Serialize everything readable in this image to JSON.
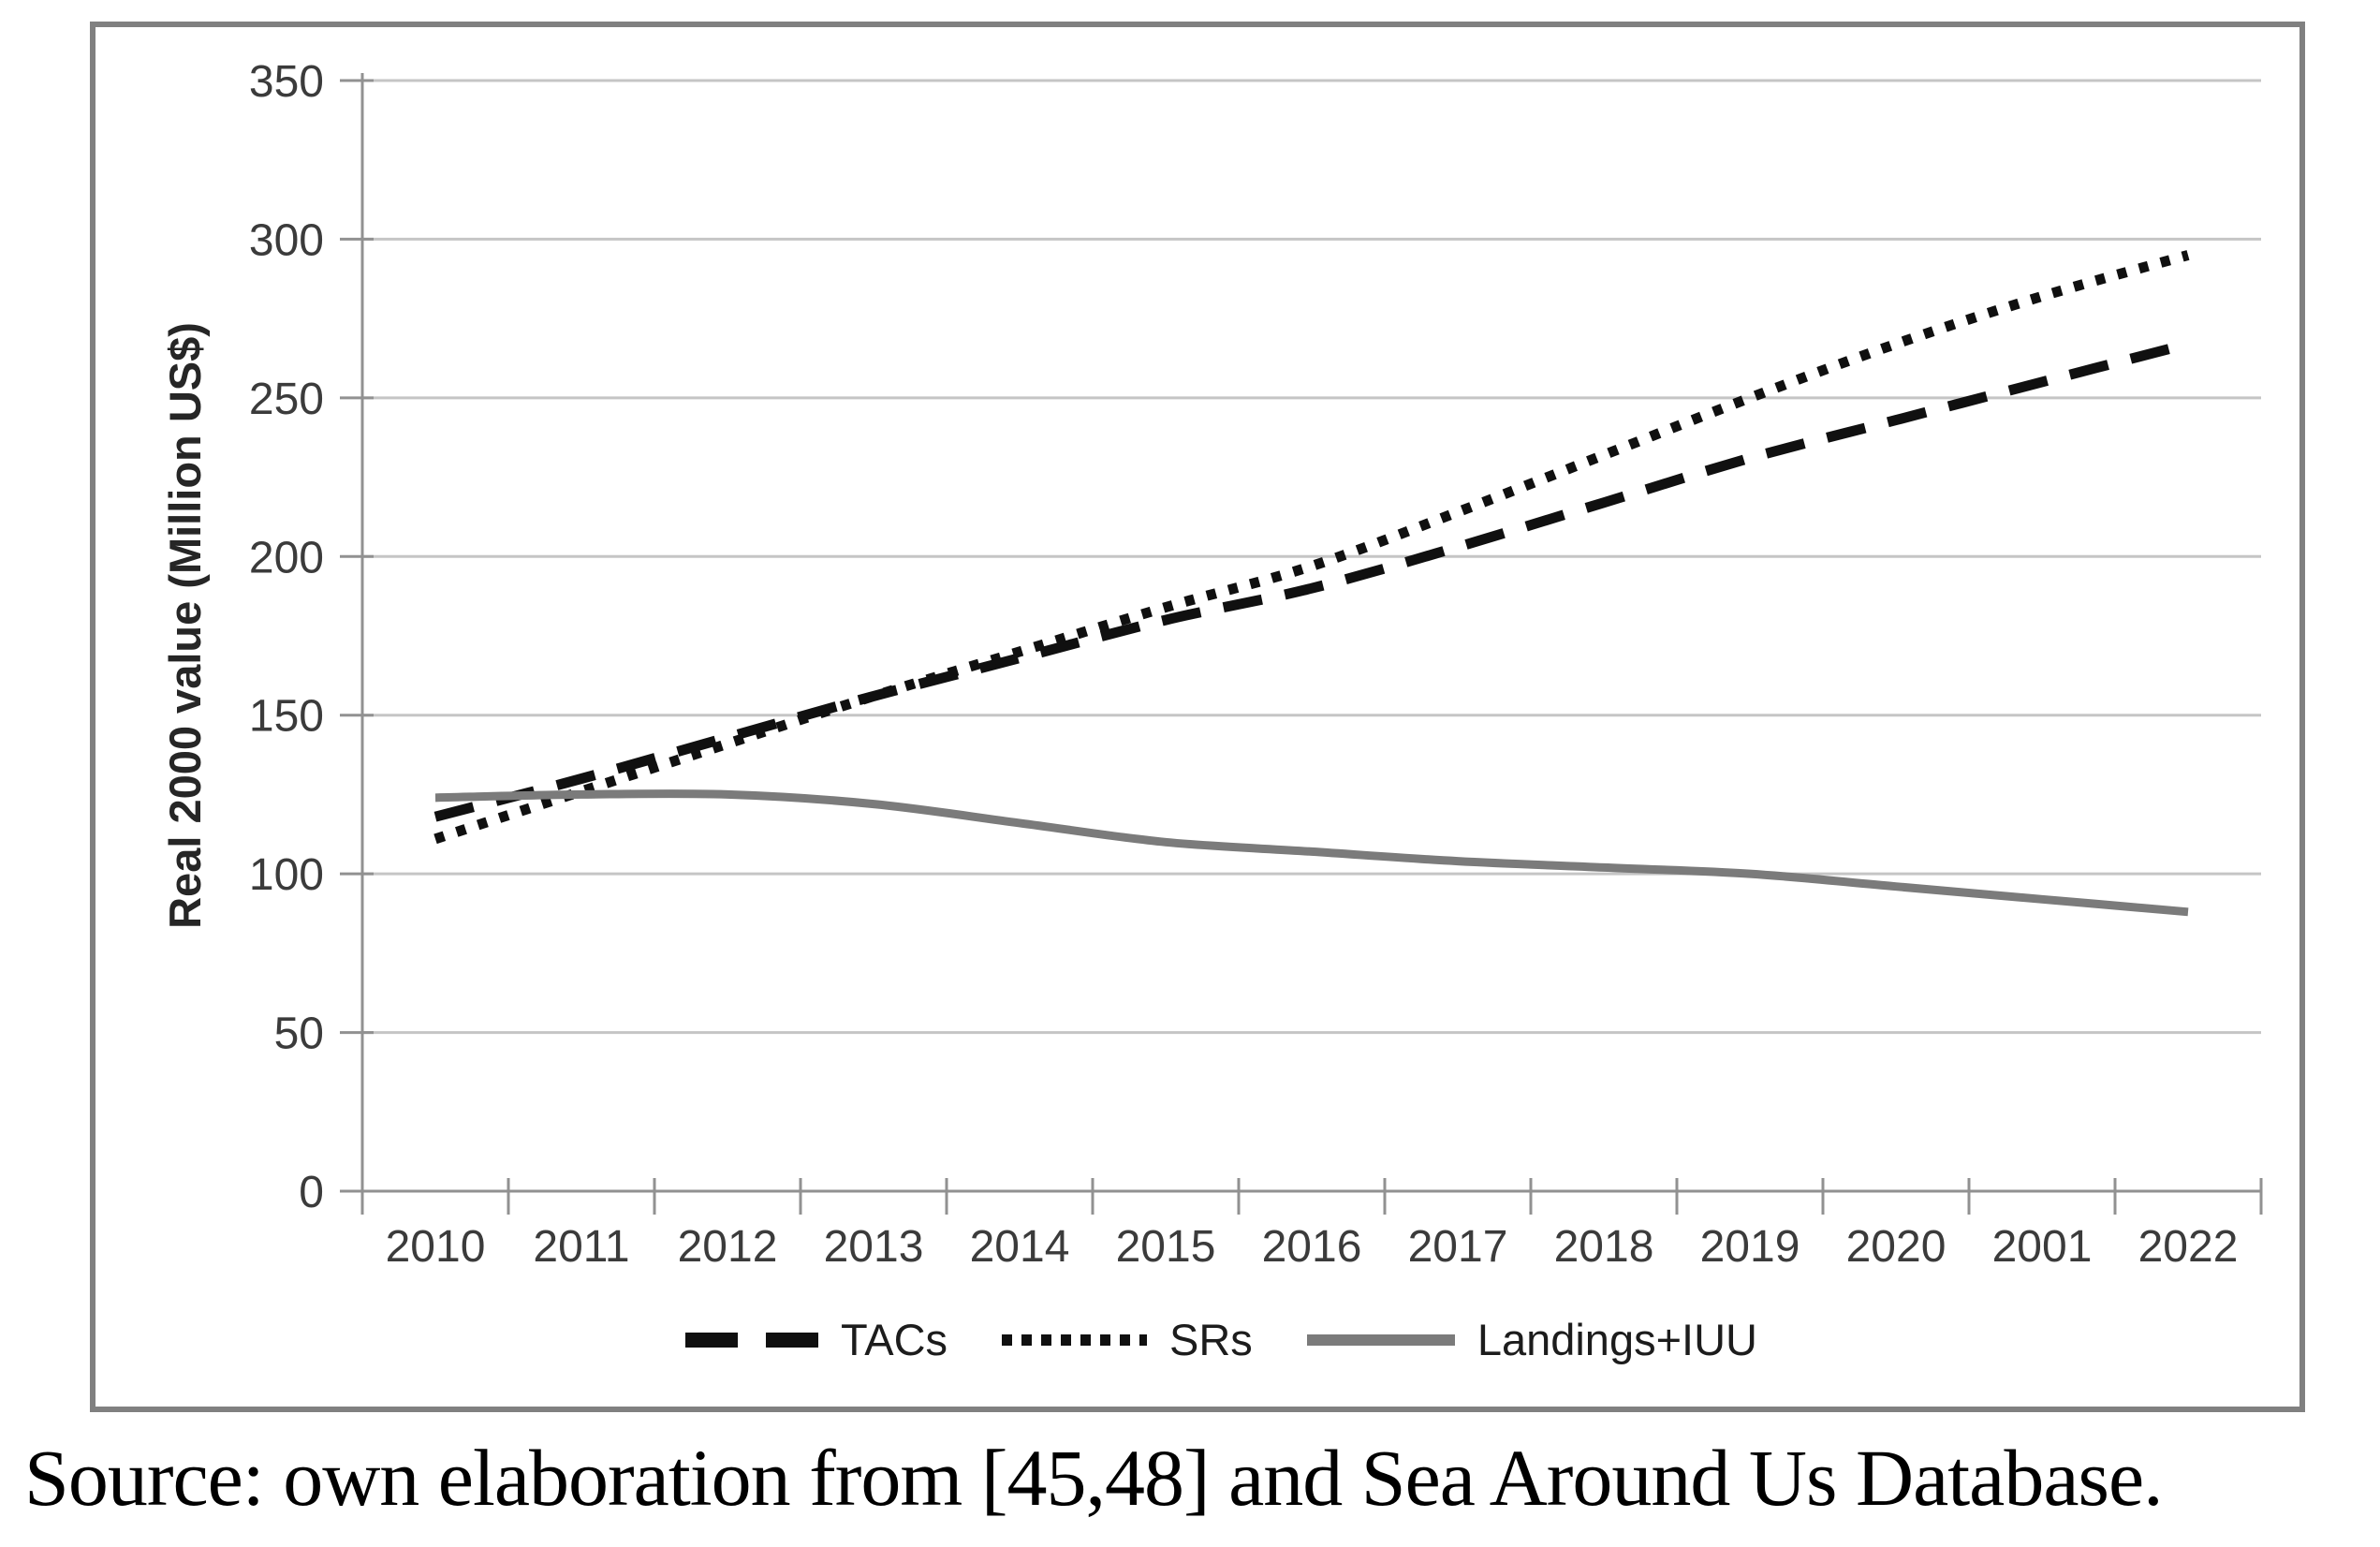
{
  "figure": {
    "caption": "Source: own elaboration from [45,48] and Sea Around Us Database."
  },
  "chart_data": {
    "type": "line",
    "title": "",
    "xlabel": "",
    "ylabel": "Real 2000 value (Million US$)",
    "ylim": [
      0,
      350
    ],
    "yticks": [
      0,
      50,
      100,
      150,
      200,
      250,
      300,
      350
    ],
    "grid": "horizontal",
    "legend_position": "bottom center",
    "categories": [
      "2010",
      "2011",
      "2012",
      "2013",
      "2014",
      "2015",
      "2016",
      "2017",
      "2018",
      "2019",
      "2020",
      "2001",
      "2022"
    ],
    "series": [
      {
        "name": "TACs",
        "style": "dashed",
        "color": "#101010",
        "values": [
          118,
          130,
          143,
          156,
          168,
          180,
          190,
          203,
          217,
          231,
          243,
          255,
          267
        ]
      },
      {
        "name": "SRs",
        "style": "dotted",
        "color": "#101010",
        "values": [
          111,
          126,
          141,
          156,
          170,
          184,
          197,
          214,
          232,
          250,
          267,
          282,
          295
        ]
      },
      {
        "name": "Landings+IUU",
        "style": "solid",
        "color": "#7b7b7b",
        "values": [
          124,
          125,
          125,
          122,
          116,
          110,
          107,
          104,
          102,
          100,
          96,
          92,
          88
        ]
      }
    ]
  },
  "colors": {
    "gridline": "#c5c5c5",
    "axis": "#919191",
    "tick_label": "#3b3b3b",
    "axis_title": "#262626",
    "figure_border": "#808080",
    "background": "#ffffff"
  }
}
